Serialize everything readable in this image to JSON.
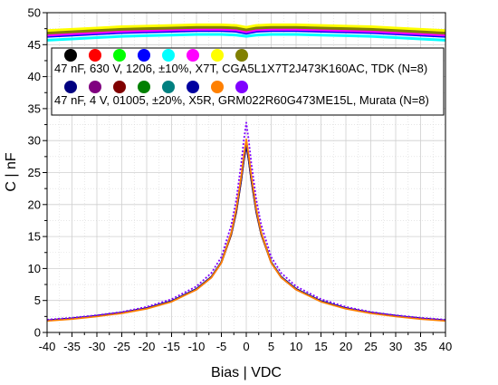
{
  "chart_data": {
    "type": "line",
    "xlabel": "Bias | VDC",
    "ylabel": "C | nF",
    "xlim": [
      -40,
      40
    ],
    "ylim": [
      0,
      50
    ],
    "x_ticks": [
      -40,
      -35,
      -30,
      -25,
      -20,
      -15,
      -10,
      -5,
      0,
      5,
      10,
      15,
      20,
      25,
      30,
      35,
      40
    ],
    "y_ticks": [
      0,
      5,
      10,
      15,
      20,
      25,
      30,
      35,
      40,
      45,
      50
    ],
    "grid": true,
    "legend": [
      {
        "label": "47 nF, 630 V, 1206, ±10%, X7T, CGA5L1X7T2J473K160AC, TDK (N=8)",
        "colors": [
          "#000000",
          "#ff0000",
          "#00ff00",
          "#0000ff",
          "#00ffff",
          "#ff00ff",
          "#ffff00",
          "#808000"
        ]
      },
      {
        "label": "47 nF, 4 V, 01005, ±20%, X5R, GRM022R60G473ME15L, Murata (N=8)",
        "colors": [
          "#000080",
          "#800080",
          "#800000",
          "#008000",
          "#008080",
          "#0000a0",
          "#ff8000",
          "#8000ff"
        ]
      }
    ],
    "series_groups": [
      {
        "group": "TDK",
        "x": [
          -40,
          -35,
          -30,
          -25,
          -20,
          -15,
          -10,
          -5,
          -2,
          0,
          2,
          5,
          10,
          15,
          20,
          25,
          30,
          35,
          40
        ],
        "series": [
          {
            "color": "#000000",
            "values": [
              46.5,
              46.7,
              46.9,
              47.1,
              47.2,
              47.3,
              47.4,
              47.4,
              47.3,
              47.0,
              47.3,
              47.4,
              47.4,
              47.3,
              47.2,
              47.1,
              46.9,
              46.7,
              46.5
            ]
          },
          {
            "color": "#ff0000",
            "values": [
              46.6,
              46.8,
              47.0,
              47.2,
              47.3,
              47.4,
              47.5,
              47.5,
              47.4,
              47.1,
              47.4,
              47.5,
              47.5,
              47.4,
              47.3,
              47.2,
              47.0,
              46.8,
              46.6
            ]
          },
          {
            "color": "#00ff00",
            "values": [
              46.4,
              46.6,
              46.8,
              47.0,
              47.1,
              47.2,
              47.3,
              47.3,
              47.2,
              46.9,
              47.2,
              47.3,
              47.3,
              47.2,
              47.1,
              47.0,
              46.8,
              46.6,
              46.4
            ]
          },
          {
            "color": "#0000ff",
            "values": [
              46.3,
              46.5,
              46.7,
              46.9,
              47.0,
              47.1,
              47.2,
              47.2,
              47.1,
              46.8,
              47.1,
              47.2,
              47.2,
              47.1,
              47.0,
              46.9,
              46.7,
              46.5,
              46.3
            ]
          },
          {
            "color": "#00ffff",
            "values": [
              45.7,
              45.9,
              46.1,
              46.3,
              46.4,
              46.5,
              46.6,
              46.6,
              46.5,
              46.3,
              46.5,
              46.6,
              46.6,
              46.5,
              46.4,
              46.3,
              46.1,
              45.9,
              45.7
            ]
          },
          {
            "color": "#ff00ff",
            "values": [
              46.5,
              46.7,
              46.9,
              47.1,
              47.2,
              47.3,
              47.4,
              47.4,
              47.3,
              47.0,
              47.3,
              47.4,
              47.4,
              47.3,
              47.2,
              47.1,
              46.9,
              46.7,
              46.5
            ]
          },
          {
            "color": "#ffff00",
            "values": [
              47.2,
              47.4,
              47.6,
              47.8,
              47.9,
              48.0,
              48.1,
              48.1,
              48.0,
              47.7,
              48.0,
              48.1,
              48.1,
              48.0,
              47.9,
              47.8,
              47.6,
              47.4,
              47.2
            ]
          },
          {
            "color": "#808000",
            "values": [
              46.8,
              47.0,
              47.2,
              47.4,
              47.5,
              47.6,
              47.7,
              47.7,
              47.6,
              47.3,
              47.6,
              47.7,
              47.7,
              47.6,
              47.5,
              47.4,
              47.2,
              47.0,
              46.8
            ]
          }
        ]
      },
      {
        "group": "Murata",
        "x": [
          -40,
          -35,
          -30,
          -25,
          -20,
          -15,
          -10,
          -7,
          -5,
          -3,
          -2,
          -1,
          -0.5,
          0,
          0.5,
          1,
          2,
          3,
          5,
          7,
          10,
          15,
          20,
          25,
          30,
          35,
          40
        ],
        "series": [
          {
            "color": "#000080",
            "values": [
              1.9,
              2.2,
              2.6,
              3.1,
              3.8,
              4.9,
              6.8,
              8.7,
              11.0,
              15.5,
              19.0,
              24.0,
              27.0,
              29.5,
              27.0,
              24.0,
              19.0,
              15.5,
              11.0,
              8.7,
              6.8,
              4.9,
              3.8,
              3.1,
              2.6,
              2.2,
              1.9
            ]
          },
          {
            "color": "#800080",
            "values": [
              1.9,
              2.2,
              2.6,
              3.1,
              3.8,
              4.9,
              6.8,
              8.7,
              11.0,
              15.6,
              19.2,
              24.3,
              27.4,
              30.0,
              27.4,
              24.3,
              19.2,
              15.6,
              11.0,
              8.7,
              6.8,
              4.9,
              3.8,
              3.1,
              2.6,
              2.2,
              1.9
            ]
          },
          {
            "color": "#800000",
            "values": [
              1.9,
              2.2,
              2.6,
              3.1,
              3.8,
              4.9,
              6.7,
              8.6,
              10.9,
              15.3,
              18.8,
              23.8,
              26.8,
              29.3,
              26.8,
              23.8,
              18.8,
              15.3,
              10.9,
              8.6,
              6.7,
              4.9,
              3.8,
              3.1,
              2.6,
              2.2,
              1.9
            ]
          },
          {
            "color": "#008000",
            "values": [
              1.9,
              2.2,
              2.6,
              3.1,
              3.8,
              4.9,
              6.8,
              8.7,
              11.0,
              15.5,
              19.1,
              24.1,
              27.2,
              29.8,
              27.2,
              24.1,
              19.1,
              15.5,
              11.0,
              8.7,
              6.8,
              4.9,
              3.8,
              3.1,
              2.6,
              2.2,
              1.9
            ]
          },
          {
            "color": "#008080",
            "values": [
              1.9,
              2.2,
              2.6,
              3.1,
              3.8,
              4.9,
              6.8,
              8.7,
              11.0,
              15.5,
              19.1,
              24.1,
              27.1,
              29.6,
              27.1,
              24.1,
              19.1,
              15.5,
              11.0,
              8.7,
              6.8,
              4.9,
              3.8,
              3.1,
              2.6,
              2.2,
              1.9
            ]
          },
          {
            "color": "#0000a0",
            "values": [
              1.9,
              2.2,
              2.6,
              3.1,
              3.8,
              4.9,
              6.8,
              8.7,
              11.0,
              15.5,
              19.0,
              24.0,
              27.0,
              29.5,
              27.0,
              24.0,
              19.0,
              15.5,
              11.0,
              8.7,
              6.8,
              4.9,
              3.8,
              3.1,
              2.6,
              2.2,
              1.9
            ]
          },
          {
            "color": "#ff8000",
            "values": [
              1.8,
              2.1,
              2.5,
              3.0,
              3.7,
              4.8,
              6.7,
              8.6,
              10.9,
              15.6,
              19.3,
              24.5,
              27.6,
              30.2,
              27.6,
              24.5,
              19.3,
              15.6,
              10.9,
              8.6,
              6.7,
              4.8,
              3.7,
              3.0,
              2.5,
              2.1,
              1.8
            ]
          },
          {
            "color": "#8000ff",
            "values": [
              2.0,
              2.3,
              2.7,
              3.2,
              4.0,
              5.2,
              7.2,
              9.3,
              11.8,
              16.8,
              20.8,
              26.5,
              30.0,
              32.8,
              30.0,
              26.5,
              20.8,
              16.8,
              11.8,
              9.3,
              7.2,
              5.2,
              4.0,
              3.2,
              2.7,
              2.3,
              2.0
            ]
          }
        ]
      }
    ]
  }
}
